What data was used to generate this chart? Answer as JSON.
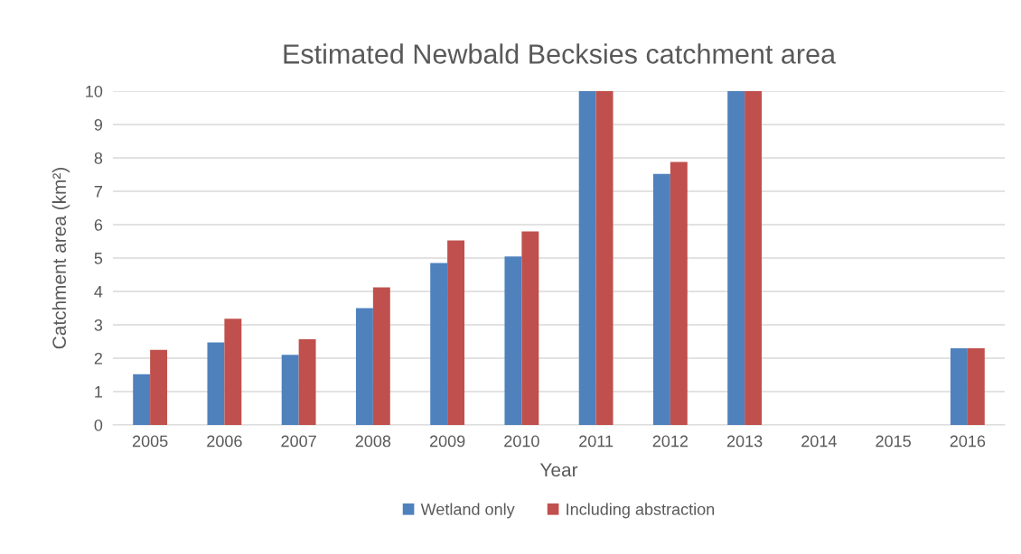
{
  "chart_data": {
    "type": "bar",
    "title": "Estimated Newbald Becksies catchment area",
    "xlabel": "Year",
    "ylabel": "Catchment area (km²)",
    "categories": [
      "2005",
      "2006",
      "2007",
      "2008",
      "2009",
      "2010",
      "2011",
      "2012",
      "2013",
      "2014",
      "2015",
      "2016"
    ],
    "series": [
      {
        "name": "Wetland only",
        "color": "#4f81bd",
        "values": [
          1.52,
          2.47,
          2.1,
          3.5,
          4.85,
          5.05,
          10,
          7.52,
          10,
          null,
          null,
          2.3
        ]
      },
      {
        "name": "Including abstraction",
        "color": "#c0504d",
        "values": [
          2.25,
          3.18,
          2.57,
          4.12,
          5.53,
          5.8,
          10,
          7.88,
          10,
          null,
          null,
          2.3
        ]
      }
    ],
    "ylim": [
      0,
      10
    ],
    "yticks": [
      0,
      1,
      2,
      3,
      4,
      5,
      6,
      7,
      8,
      9,
      10
    ],
    "grid": "y",
    "legend": "bottom"
  }
}
